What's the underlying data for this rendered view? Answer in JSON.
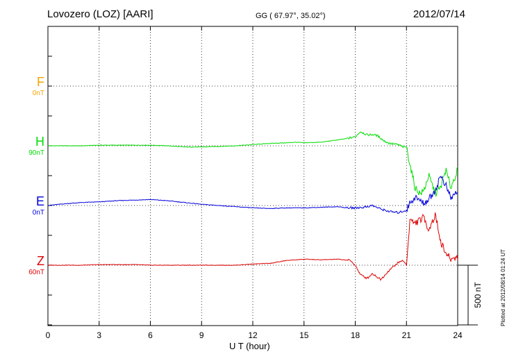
{
  "header": {
    "title": "Lovozero (LOZ)  [AARI]",
    "coords": "GG ( 67.97°,  35.02°)",
    "date": "2012/07/14"
  },
  "footer": {
    "xlabel": "U T (hour)",
    "plotted": "Plotted at 2012/08/14 01:24 UT"
  },
  "channels": [
    {
      "name": "F",
      "unit": "0nT",
      "color": "#f4a300"
    },
    {
      "name": "H",
      "unit": "90nT",
      "color": "#00dd00"
    },
    {
      "name": "E",
      "unit": "0nT",
      "color": "#0000dd"
    },
    {
      "name": "Z",
      "unit": "60nT",
      "color": "#dd0000"
    }
  ],
  "scale_bar": {
    "label": "500 nT",
    "value_nT": 500
  },
  "chart_data": {
    "type": "line",
    "title": "Lovozero (LOZ)  [AARI]",
    "xlabel": "U T (hour)",
    "xlim": [
      0,
      24
    ],
    "x_ticks": [
      0,
      3,
      6,
      9,
      12,
      15,
      18,
      21,
      24
    ],
    "grid": true,
    "units": "nT",
    "series": [
      {
        "name": "H",
        "color": "#00dd00",
        "baseline": 90,
        "x": [
          0,
          1,
          2,
          3,
          4,
          5,
          6,
          7,
          8,
          9,
          10,
          11,
          12,
          13,
          14,
          14.5,
          15,
          16,
          17,
          17.5,
          18,
          18.3,
          18.7,
          19,
          19.3,
          19.7,
          20,
          20.5,
          20.8,
          21,
          21.2,
          21.5,
          21.8,
          22,
          22.3,
          22.7,
          23,
          23.3,
          23.6,
          24
        ],
        "y": [
          0,
          0,
          0,
          5,
          5,
          5,
          5,
          0,
          -10,
          -10,
          -5,
          0,
          10,
          20,
          25,
          30,
          25,
          30,
          50,
          60,
          75,
          120,
          90,
          95,
          85,
          40,
          20,
          10,
          -10,
          -10,
          -150,
          -350,
          -400,
          -380,
          -250,
          -400,
          -350,
          -200,
          -350,
          -200
        ]
      },
      {
        "name": "E",
        "color": "#0000dd",
        "baseline": 0,
        "x": [
          0,
          1,
          2,
          3,
          4,
          5,
          6,
          7,
          8,
          9,
          10,
          11,
          12,
          13,
          14,
          15,
          16,
          17,
          17.5,
          18,
          18.5,
          19,
          19.5,
          20,
          20.5,
          21,
          21.2,
          21.5,
          22,
          22.3,
          22.7,
          23,
          23.3,
          23.6,
          24
        ],
        "y": [
          0,
          15,
          25,
          30,
          40,
          45,
          50,
          40,
          25,
          10,
          0,
          -10,
          -20,
          -25,
          -20,
          -20,
          -15,
          -10,
          -20,
          -20,
          -15,
          0,
          -30,
          -50,
          -60,
          -40,
          20,
          70,
          20,
          50,
          130,
          250,
          170,
          60,
          120
        ]
      },
      {
        "name": "Z",
        "color": "#dd0000",
        "baseline": 60,
        "x": [
          0,
          1,
          2,
          3,
          4,
          5,
          6,
          7,
          8,
          9,
          10,
          11,
          12,
          13,
          14,
          15,
          16,
          17,
          17.7,
          18,
          18.3,
          18.7,
          19,
          19.5,
          20,
          20.5,
          20.8,
          21,
          21.2,
          21.5,
          22,
          22.3,
          22.7,
          23,
          23.3,
          23.6,
          24
        ],
        "y": [
          0,
          0,
          0,
          5,
          5,
          5,
          0,
          0,
          0,
          0,
          0,
          0,
          10,
          15,
          40,
          50,
          45,
          50,
          40,
          0,
          -80,
          -110,
          -70,
          -120,
          -40,
          20,
          40,
          0,
          380,
          350,
          400,
          300,
          420,
          200,
          100,
          50,
          70
        ]
      }
    ]
  }
}
